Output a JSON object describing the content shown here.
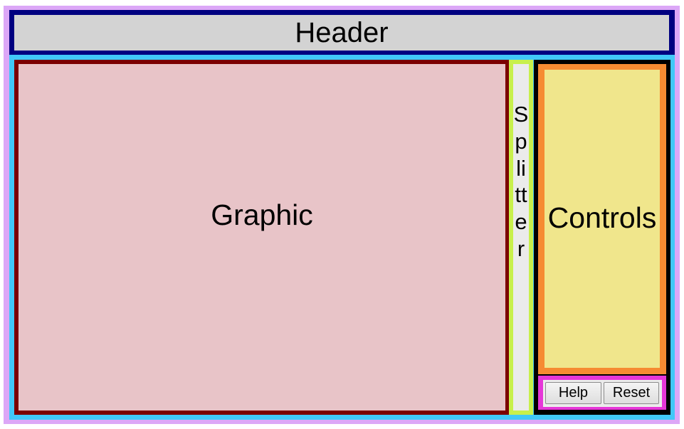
{
  "header": {
    "title": "Header"
  },
  "graphic": {
    "label": "Graphic"
  },
  "splitter": {
    "label": "Splitter"
  },
  "controls": {
    "label": "Controls"
  },
  "buttons": {
    "help_label": "Help",
    "reset_label": "Reset"
  },
  "colors": {
    "outer_frame": "#dca7f7",
    "header_border": "#000080",
    "header_bg": "#d3d3d3",
    "main_border": "#41c8f8",
    "graphic_border": "#7b0000",
    "graphic_bg": "#e8c4c8",
    "splitter_border": "#c8f04c",
    "splitter_bg": "#ebebeb",
    "side_panel_border": "#000000",
    "controls_border": "#f68b32",
    "controls_bg": "#f0e68c",
    "buttons_border": "#e636d8"
  }
}
